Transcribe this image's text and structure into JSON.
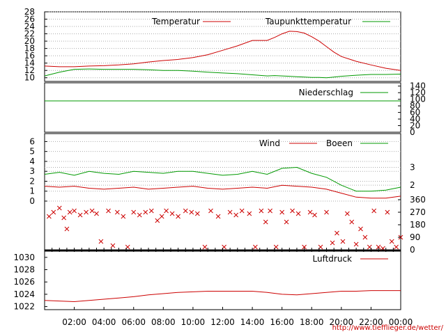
{
  "chart_data": [
    {
      "id": "temperature",
      "type": "line",
      "ylim": [
        9,
        28
      ],
      "yticks": [
        10,
        12,
        14,
        16,
        18,
        20,
        22,
        24,
        26,
        28
      ],
      "legend_position": "top",
      "grid": true,
      "x_hours": [
        0,
        1,
        2,
        3,
        4,
        5,
        6,
        7,
        8,
        9,
        10,
        11,
        12,
        13,
        14,
        15,
        15.5,
        16,
        16.5,
        17,
        17.5,
        18,
        18.5,
        19,
        19.5,
        20,
        21,
        22,
        23,
        24
      ],
      "series": [
        {
          "name": "Temperatur",
          "color": "#cc0000",
          "values": [
            13.2,
            13.0,
            13.0,
            13.2,
            13.3,
            13.5,
            13.8,
            14.3,
            14.7,
            15.0,
            15.5,
            16.3,
            17.5,
            18.7,
            20.2,
            20.2,
            21.0,
            22.0,
            22.7,
            22.6,
            22.2,
            21.2,
            20.0,
            18.5,
            17.0,
            15.8,
            14.5,
            13.5,
            12.6,
            12.0
          ]
        },
        {
          "name": "Taupunkttemperatur",
          "color": "#009900",
          "values": [
            10.5,
            11.5,
            12.3,
            12.4,
            12.3,
            12.3,
            12.3,
            12.2,
            12.0,
            12.0,
            11.8,
            11.5,
            11.3,
            11.1,
            10.8,
            10.5,
            10.6,
            10.5,
            10.4,
            10.3,
            10.2,
            10.1,
            10.1,
            10.0,
            10.2,
            10.4,
            10.7,
            10.9,
            10.9,
            11.0
          ]
        }
      ]
    },
    {
      "id": "precipitation",
      "type": "line",
      "ylim": [
        0,
        150
      ],
      "yticks": [
        0,
        20,
        40,
        60,
        80,
        100,
        120,
        140
      ],
      "legend_position": "top-right",
      "series": [
        {
          "name": "Niederschlag",
          "color": "#009900",
          "x_hours": [
            0,
            24
          ],
          "values": [
            95,
            95
          ]
        }
      ]
    },
    {
      "id": "wind",
      "type": "line",
      "ylim": [
        0,
        6.8
      ],
      "yticks": [
        0,
        1,
        2,
        3,
        4,
        5,
        6
      ],
      "beaufort_ticks": [
        {
          "label": "2",
          "value": 1.6
        },
        {
          "label": "3",
          "value": 3.4
        }
      ],
      "legend_position": "top-right",
      "x_hours": [
        0,
        1,
        2,
        3,
        4,
        5,
        6,
        7,
        8,
        9,
        10,
        11,
        12,
        13,
        14,
        15,
        16,
        17,
        18,
        19,
        20,
        21,
        22,
        23,
        24
      ],
      "series": [
        {
          "name": "Wind",
          "color": "#cc0000",
          "values": [
            1.5,
            1.4,
            1.5,
            1.3,
            1.2,
            1.3,
            1.4,
            1.2,
            1.3,
            1.4,
            1.5,
            1.3,
            1.2,
            1.3,
            1.4,
            1.3,
            1.6,
            1.5,
            1.4,
            1.2,
            0.8,
            0.4,
            0.3,
            0.3,
            0.5
          ]
        },
        {
          "name": "Boeen",
          "color": "#009900",
          "values": [
            2.7,
            2.9,
            2.6,
            3.0,
            2.8,
            2.7,
            3.0,
            2.9,
            2.8,
            3.0,
            3.0,
            2.8,
            2.6,
            2.7,
            3.0,
            2.7,
            3.3,
            3.4,
            2.8,
            2.4,
            1.6,
            1.0,
            1.0,
            1.1,
            1.4
          ]
        }
      ]
    },
    {
      "id": "wind-direction",
      "type": "scatter",
      "ylim": [
        0,
        360
      ],
      "yticks": [
        0,
        90,
        180,
        270,
        360
      ],
      "marker": "x",
      "series": [
        {
          "name": "",
          "color": "#cc0000",
          "points": [
            [
              0.3,
              240
            ],
            [
              0.6,
              270
            ],
            [
              1.0,
              300
            ],
            [
              1.3,
              230
            ],
            [
              1.5,
              150
            ],
            [
              1.7,
              270
            ],
            [
              2.0,
              280
            ],
            [
              2.4,
              250
            ],
            [
              2.8,
              270
            ],
            [
              3.2,
              280
            ],
            [
              3.5,
              260
            ],
            [
              3.8,
              60
            ],
            [
              4.3,
              280
            ],
            [
              4.6,
              30
            ],
            [
              4.9,
              270
            ],
            [
              5.3,
              240
            ],
            [
              5.6,
              20
            ],
            [
              6.0,
              270
            ],
            [
              6.4,
              250
            ],
            [
              6.8,
              270
            ],
            [
              7.2,
              280
            ],
            [
              7.6,
              210
            ],
            [
              7.9,
              240
            ],
            [
              8.2,
              280
            ],
            [
              8.6,
              260
            ],
            [
              9.0,
              240
            ],
            [
              9.5,
              280
            ],
            [
              9.9,
              270
            ],
            [
              10.3,
              260
            ],
            [
              10.8,
              20
            ],
            [
              11.2,
              280
            ],
            [
              11.7,
              240
            ],
            [
              12.1,
              20
            ],
            [
              12.5,
              270
            ],
            [
              12.9,
              250
            ],
            [
              13.3,
              280
            ],
            [
              13.8,
              260
            ],
            [
              14.2,
              20
            ],
            [
              14.6,
              280
            ],
            [
              14.9,
              200
            ],
            [
              15.2,
              280
            ],
            [
              15.6,
              20
            ],
            [
              16.0,
              270
            ],
            [
              16.3,
              200
            ],
            [
              16.7,
              280
            ],
            [
              17.1,
              260
            ],
            [
              17.5,
              20
            ],
            [
              17.9,
              270
            ],
            [
              18.2,
              250
            ],
            [
              18.6,
              20
            ],
            [
              19.0,
              270
            ],
            [
              19.4,
              50
            ],
            [
              19.7,
              120
            ],
            [
              20.1,
              60
            ],
            [
              20.4,
              260
            ],
            [
              20.7,
              200
            ],
            [
              21.0,
              40
            ],
            [
              21.3,
              150
            ],
            [
              21.6,
              90
            ],
            [
              21.9,
              20
            ],
            [
              22.2,
              280
            ],
            [
              22.5,
              20
            ],
            [
              22.8,
              10
            ],
            [
              23.1,
              270
            ],
            [
              23.4,
              60
            ],
            [
              23.7,
              20
            ],
            [
              24.0,
              90
            ]
          ]
        }
      ]
    },
    {
      "id": "pressure",
      "type": "line",
      "ylim": [
        1021.5,
        1031
      ],
      "yticks": [
        1022,
        1024,
        1026,
        1028,
        1030
      ],
      "legend_position": "top-right",
      "x_hours": [
        0,
        1,
        2,
        3,
        4,
        5,
        6,
        7,
        8,
        9,
        10,
        11,
        12,
        13,
        14,
        15,
        16,
        17,
        18,
        19,
        20,
        21,
        22,
        23,
        24
      ],
      "series": [
        {
          "name": "Luftdruck",
          "color": "#cc0000",
          "values": [
            1023.0,
            1022.9,
            1022.8,
            1023.0,
            1023.2,
            1023.4,
            1023.6,
            1023.9,
            1024.1,
            1024.3,
            1024.4,
            1024.5,
            1024.5,
            1024.5,
            1024.5,
            1024.3,
            1024.0,
            1023.9,
            1024.1,
            1024.3,
            1024.5,
            1024.5,
            1024.6,
            1024.6,
            1024.6
          ]
        }
      ]
    }
  ],
  "x_axis": {
    "ticks": [
      {
        "label": "02:00",
        "hour": 2
      },
      {
        "label": "04:00",
        "hour": 4
      },
      {
        "label": "06:00",
        "hour": 6
      },
      {
        "label": "08:00",
        "hour": 8
      },
      {
        "label": "10:00",
        "hour": 10
      },
      {
        "label": "12:00",
        "hour": 12
      },
      {
        "label": "14:00",
        "hour": 14
      },
      {
        "label": "16:00",
        "hour": 16
      },
      {
        "label": "18:00",
        "hour": 18
      },
      {
        "label": "20:00",
        "hour": 20
      },
      {
        "label": "22:00",
        "hour": 22
      },
      {
        "label": "00:00",
        "hour": 24
      }
    ]
  },
  "credit": "http://www.tiefflieger.de/wetter/"
}
